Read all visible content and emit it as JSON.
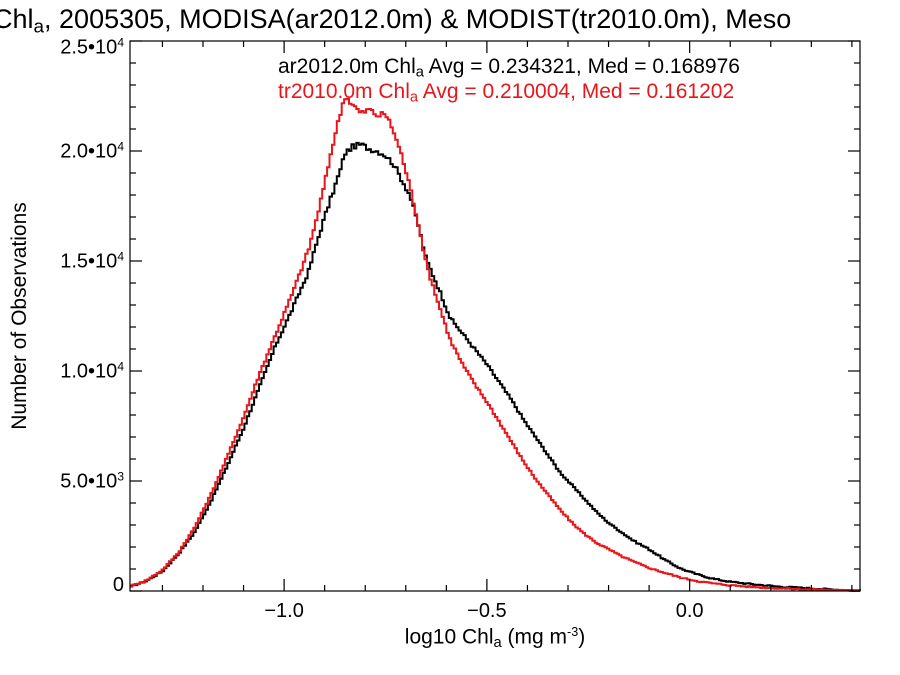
{
  "chart_data": {
    "type": "line",
    "title": {
      "text_before_sub": "Chl",
      "sub": "a",
      "text_after_sub": ", 2005305, MODISA(ar2012.0m) & MODIST(tr2010.0m), Meso"
    },
    "xlabel": {
      "text_before_sub": "log10 Chl",
      "sub": "a",
      "text_mid": " (mg m",
      "sup": "-3",
      "text_end": ")"
    },
    "ylabel": "Number of Observations",
    "xlim": [
      -1.38,
      0.42
    ],
    "ylim": [
      0,
      25000
    ],
    "x_ticks": [
      {
        "value": -1.0,
        "label": "−1.0"
      },
      {
        "value": -0.5,
        "label": "−0.5"
      },
      {
        "value": 0.0,
        "label": "0.0"
      }
    ],
    "y_ticks": [
      {
        "value": 0,
        "label": "0",
        "base": "0",
        "exp": ""
      },
      {
        "value": 5000,
        "label": "5.0•10^3",
        "base": "5.0•10",
        "exp": "3"
      },
      {
        "value": 10000,
        "label": "1.0•10^4",
        "base": "1.0•10",
        "exp": "4"
      },
      {
        "value": 15000,
        "label": "1.5•10^4",
        "base": "1.5•10",
        "exp": "4"
      },
      {
        "value": 20000,
        "label": "2.0•10^4",
        "base": "2.0•10",
        "exp": "4"
      },
      {
        "value": 25000,
        "label": "2.5•10^4",
        "base": "2.5•10",
        "exp": "4"
      }
    ],
    "grid": false,
    "legend_placement": "top-right",
    "colors": {
      "ar2012": "#000000",
      "tr2010": "#e8161b"
    },
    "series": [
      {
        "key": "ar2012",
        "color": "#000000",
        "legend": {
          "pre": "ar2012.0m Chl",
          "sub": "a",
          "post": " Avg = 0.234321, Med = 0.168976"
        },
        "points": [
          [
            -1.38,
            200
          ],
          [
            -1.34,
            450
          ],
          [
            -1.3,
            900
          ],
          [
            -1.26,
            1700
          ],
          [
            -1.22,
            2700
          ],
          [
            -1.18,
            4100
          ],
          [
            -1.14,
            5700
          ],
          [
            -1.1,
            7400
          ],
          [
            -1.06,
            9300
          ],
          [
            -1.02,
            11200
          ],
          [
            -0.98,
            12800
          ],
          [
            -0.94,
            14500
          ],
          [
            -0.92,
            15800
          ],
          [
            -0.9,
            17000
          ],
          [
            -0.88,
            18100
          ],
          [
            -0.86,
            19200
          ],
          [
            -0.85,
            19900
          ],
          [
            -0.83,
            20200
          ],
          [
            -0.81,
            20300
          ],
          [
            -0.79,
            20100
          ],
          [
            -0.77,
            20000
          ],
          [
            -0.75,
            19800
          ],
          [
            -0.73,
            19400
          ],
          [
            -0.71,
            18700
          ],
          [
            -0.69,
            18000
          ],
          [
            -0.67,
            16700
          ],
          [
            -0.65,
            15100
          ],
          [
            -0.62,
            13800
          ],
          [
            -0.59,
            12400
          ],
          [
            -0.56,
            11700
          ],
          [
            -0.53,
            11000
          ],
          [
            -0.5,
            10300
          ],
          [
            -0.47,
            9500
          ],
          [
            -0.44,
            8700
          ],
          [
            -0.41,
            7800
          ],
          [
            -0.38,
            7000
          ],
          [
            -0.35,
            6200
          ],
          [
            -0.32,
            5400
          ],
          [
            -0.29,
            4800
          ],
          [
            -0.26,
            4200
          ],
          [
            -0.23,
            3600
          ],
          [
            -0.2,
            3100
          ],
          [
            -0.17,
            2700
          ],
          [
            -0.14,
            2300
          ],
          [
            -0.1,
            1900
          ],
          [
            -0.06,
            1400
          ],
          [
            -0.02,
            1000
          ],
          [
            0.02,
            750
          ],
          [
            0.06,
            550
          ],
          [
            0.1,
            420
          ],
          [
            0.16,
            300
          ],
          [
            0.22,
            200
          ],
          [
            0.28,
            140
          ],
          [
            0.34,
            80
          ],
          [
            0.4,
            30
          ],
          [
            0.42,
            20
          ]
        ]
      },
      {
        "key": "tr2010",
        "color": "#e8161b",
        "legend": {
          "pre": "tr2010.0m Chl",
          "sub": "a",
          "post": " Avg = 0.210004, Med = 0.161202"
        },
        "points": [
          [
            -1.38,
            200
          ],
          [
            -1.34,
            480
          ],
          [
            -1.3,
            950
          ],
          [
            -1.26,
            1750
          ],
          [
            -1.22,
            2900
          ],
          [
            -1.18,
            4400
          ],
          [
            -1.14,
            6100
          ],
          [
            -1.1,
            7900
          ],
          [
            -1.06,
            9900
          ],
          [
            -1.02,
            11700
          ],
          [
            -0.98,
            13500
          ],
          [
            -0.94,
            15500
          ],
          [
            -0.92,
            16900
          ],
          [
            -0.9,
            18500
          ],
          [
            -0.88,
            20300
          ],
          [
            -0.86,
            21800
          ],
          [
            -0.85,
            22500
          ],
          [
            -0.83,
            22100
          ],
          [
            -0.81,
            21700
          ],
          [
            -0.79,
            21900
          ],
          [
            -0.77,
            21600
          ],
          [
            -0.75,
            21700
          ],
          [
            -0.73,
            20900
          ],
          [
            -0.71,
            19800
          ],
          [
            -0.69,
            18400
          ],
          [
            -0.67,
            16800
          ],
          [
            -0.65,
            14900
          ],
          [
            -0.62,
            13100
          ],
          [
            -0.59,
            11400
          ],
          [
            -0.56,
            10300
          ],
          [
            -0.53,
            9400
          ],
          [
            -0.5,
            8600
          ],
          [
            -0.47,
            7700
          ],
          [
            -0.44,
            6800
          ],
          [
            -0.41,
            5900
          ],
          [
            -0.38,
            5100
          ],
          [
            -0.35,
            4400
          ],
          [
            -0.32,
            3700
          ],
          [
            -0.29,
            3100
          ],
          [
            -0.26,
            2600
          ],
          [
            -0.23,
            2200
          ],
          [
            -0.2,
            1900
          ],
          [
            -0.17,
            1600
          ],
          [
            -0.14,
            1350
          ],
          [
            -0.1,
            1050
          ],
          [
            -0.06,
            820
          ],
          [
            -0.02,
            600
          ],
          [
            0.02,
            450
          ],
          [
            0.06,
            340
          ],
          [
            0.1,
            260
          ],
          [
            0.16,
            180
          ],
          [
            0.22,
            120
          ],
          [
            0.28,
            80
          ],
          [
            0.34,
            50
          ],
          [
            0.4,
            20
          ],
          [
            0.42,
            15
          ]
        ]
      }
    ]
  }
}
